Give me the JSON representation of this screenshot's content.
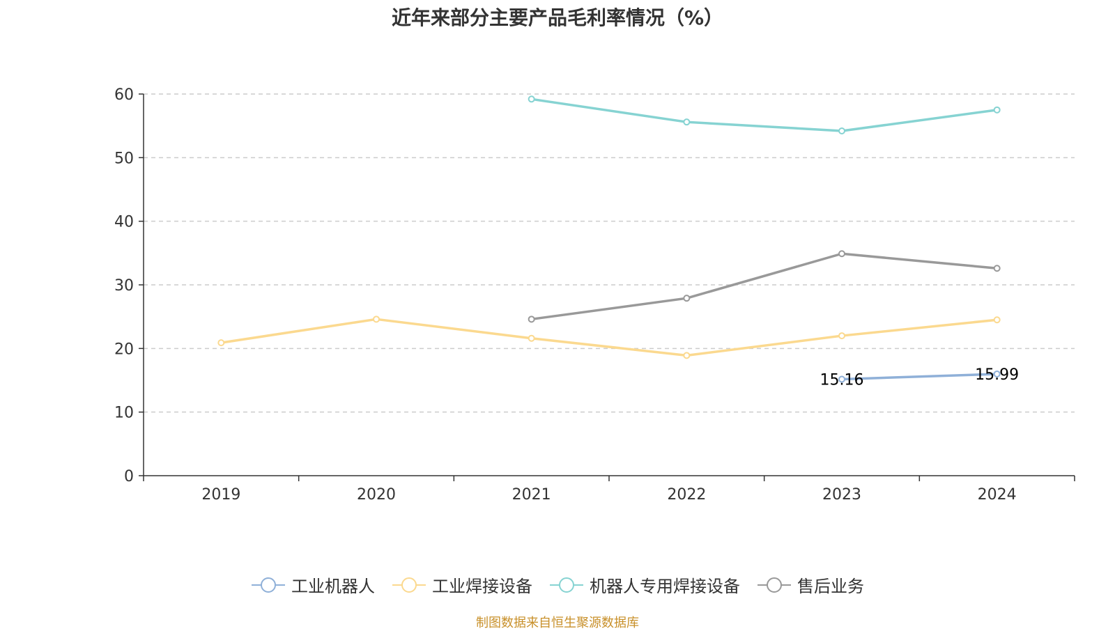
{
  "chart_data": {
    "type": "line",
    "title": "近年来部分主要产品毛利率情况（%）",
    "categories": [
      "2019",
      "2020",
      "2021",
      "2022",
      "2023",
      "2024"
    ],
    "ylim": [
      0,
      60
    ],
    "yticks": [
      "0",
      "10",
      "20",
      "30",
      "40",
      "50",
      "60"
    ],
    "grid": true,
    "legend_position": "bottom",
    "series": [
      {
        "name": "工业机器人",
        "color": "#8fb0d8",
        "values": [
          null,
          null,
          null,
          null,
          15.16,
          15.99
        ],
        "labels": [
          "",
          "",
          "",
          "",
          "15.16",
          "15.99"
        ]
      },
      {
        "name": "工业焊接设备",
        "color": "#fbd98f",
        "values": [
          20.9,
          24.6,
          21.6,
          18.9,
          22.0,
          24.5
        ]
      },
      {
        "name": "机器人专用焊接设备",
        "color": "#86d3d2",
        "values": [
          null,
          null,
          59.2,
          55.6,
          54.2,
          57.5
        ]
      },
      {
        "name": "售后业务",
        "color": "#999999",
        "values": [
          null,
          null,
          24.6,
          27.9,
          34.9,
          32.6
        ]
      }
    ]
  },
  "source": "制图数据来自恒生聚源数据库"
}
